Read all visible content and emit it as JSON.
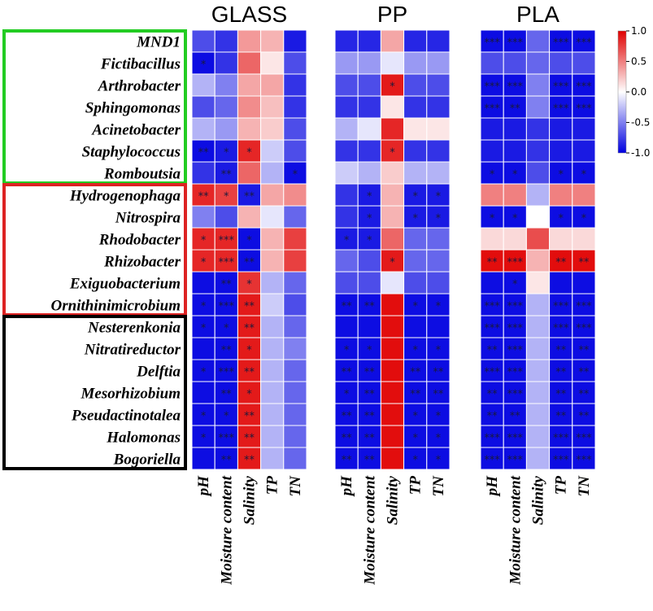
{
  "chart_data": {
    "type": "heatmap",
    "rows": [
      "MND1",
      "Fictibacillus",
      "Arthrobacter",
      "Sphingomonas",
      "Acinetobacter",
      "Staphylococcus",
      "Romboutsia",
      "Hydrogenophaga",
      "Nitrospira",
      "Rhodobacter",
      "Rhizobacter",
      "Exiguobacterium",
      "Ornithinimicrobium",
      "Nesterenkonia",
      "Nitratireductor",
      "Delftia",
      "Mesorhizobium",
      "Pseudactinotalea",
      "Halomonas",
      "Bogoriella"
    ],
    "columns": [
      "pH",
      "Moisture content",
      "Salinity",
      "TP",
      "TN"
    ],
    "groups": [
      {
        "name": "green",
        "color": "#22cc22",
        "from": 0,
        "to": 6
      },
      {
        "name": "red",
        "color": "#dd2222",
        "from": 7,
        "to": 12
      },
      {
        "name": "black",
        "color": "#000000",
        "from": 13,
        "to": 19
      }
    ],
    "colorbar": {
      "ticks": [
        "1.0",
        "0.5",
        "0.0",
        "-0.5",
        "-1.0"
      ],
      "range": [
        -1,
        1
      ],
      "low_color": "#0000e0",
      "mid_color": "#ffffff",
      "high_color": "#e00000"
    },
    "panels": [
      {
        "title": "GLASS",
        "values": [
          [
            -0.7,
            -0.8,
            0.4,
            0.3,
            -0.9
          ],
          [
            -0.95,
            -0.8,
            0.6,
            0.1,
            -0.7
          ],
          [
            -0.3,
            -0.5,
            0.35,
            0.35,
            -0.8
          ],
          [
            -0.7,
            -0.6,
            0.45,
            0.25,
            -0.8
          ],
          [
            -0.3,
            -0.4,
            0.3,
            0.2,
            -0.7
          ],
          [
            -0.95,
            -0.9,
            0.85,
            -0.2,
            -0.7
          ],
          [
            -0.8,
            -0.9,
            0.6,
            -0.3,
            -0.95
          ],
          [
            0.85,
            0.75,
            -0.9,
            0.35,
            0.45
          ],
          [
            -0.5,
            -0.7,
            0.3,
            -0.1,
            -0.6
          ],
          [
            0.85,
            0.85,
            -0.95,
            0.3,
            0.75
          ],
          [
            0.85,
            0.85,
            -0.95,
            0.3,
            0.75
          ],
          [
            -0.95,
            -0.95,
            0.8,
            -0.3,
            -0.6
          ],
          [
            -0.95,
            -0.95,
            0.9,
            -0.2,
            -0.7
          ],
          [
            -0.95,
            -0.95,
            0.9,
            -0.3,
            -0.6
          ],
          [
            -0.95,
            -0.95,
            0.9,
            -0.3,
            -0.5
          ],
          [
            -0.95,
            -0.95,
            0.9,
            -0.3,
            -0.6
          ],
          [
            -0.95,
            -0.95,
            0.9,
            -0.3,
            -0.6
          ],
          [
            -0.95,
            -0.95,
            0.9,
            -0.3,
            -0.6
          ],
          [
            -0.95,
            -0.95,
            0.9,
            -0.3,
            -0.6
          ],
          [
            -0.95,
            -0.95,
            0.9,
            -0.3,
            -0.6
          ]
        ],
        "stars": [
          [
            "",
            "",
            "",
            "",
            ""
          ],
          [
            "*",
            "",
            "",
            "",
            ""
          ],
          [
            "",
            "",
            "",
            "",
            ""
          ],
          [
            "",
            "",
            "",
            "",
            ""
          ],
          [
            "",
            "",
            "",
            "",
            ""
          ],
          [
            "**",
            "*",
            "*",
            "",
            ""
          ],
          [
            "",
            "**",
            "",
            "",
            "*"
          ],
          [
            "**",
            "*",
            "**",
            "",
            ""
          ],
          [
            "",
            "",
            "",
            "",
            ""
          ],
          [
            "*",
            "***",
            "*",
            "",
            ""
          ],
          [
            "*",
            "***",
            "**",
            "",
            ""
          ],
          [
            "",
            "**",
            "*",
            "",
            ""
          ],
          [
            "*",
            "***",
            "**",
            "",
            ""
          ],
          [
            "*",
            "*",
            "**",
            "",
            ""
          ],
          [
            "",
            "**",
            "*",
            "",
            ""
          ],
          [
            "*",
            "***",
            "**",
            "",
            ""
          ],
          [
            "",
            "**",
            "*",
            "",
            ""
          ],
          [
            "*",
            "*",
            "**",
            "",
            ""
          ],
          [
            "*",
            "***",
            "**",
            "",
            ""
          ],
          [
            "",
            "**",
            "**",
            "",
            ""
          ]
        ]
      },
      {
        "title": "PP",
        "values": [
          [
            -0.85,
            -0.85,
            0.35,
            -0.85,
            -0.85
          ],
          [
            -0.4,
            -0.4,
            -0.1,
            -0.4,
            -0.4
          ],
          [
            -0.7,
            -0.7,
            0.9,
            -0.7,
            -0.7
          ],
          [
            -0.8,
            -0.8,
            0.1,
            -0.8,
            -0.8
          ],
          [
            -0.3,
            -0.1,
            0.85,
            0.1,
            0.1
          ],
          [
            -0.8,
            -0.8,
            0.85,
            -0.8,
            -0.8
          ],
          [
            -0.2,
            -0.3,
            0.2,
            -0.3,
            -0.3
          ],
          [
            -0.8,
            -0.9,
            0.3,
            -0.9,
            -0.9
          ],
          [
            -0.8,
            -0.9,
            0.3,
            -0.9,
            -0.9
          ],
          [
            -0.9,
            -0.9,
            0.6,
            -0.6,
            -0.6
          ],
          [
            -0.6,
            -0.7,
            0.9,
            -0.6,
            -0.6
          ],
          [
            -0.7,
            -0.7,
            -0.1,
            -0.7,
            -0.7
          ],
          [
            -0.95,
            -0.95,
            0.95,
            -0.95,
            -0.95
          ],
          [
            -0.95,
            -0.95,
            0.95,
            -0.95,
            -0.95
          ],
          [
            -0.95,
            -0.95,
            0.95,
            -0.95,
            -0.95
          ],
          [
            -0.95,
            -0.95,
            0.95,
            -0.95,
            -0.95
          ],
          [
            -0.95,
            -0.95,
            0.95,
            -0.95,
            -0.95
          ],
          [
            -0.95,
            -0.95,
            0.95,
            -0.95,
            -0.95
          ],
          [
            -0.95,
            -0.95,
            0.95,
            -0.95,
            -0.95
          ],
          [
            -0.95,
            -0.95,
            0.95,
            -0.95,
            -0.95
          ]
        ],
        "stars": [
          [
            "",
            "",
            "",
            "",
            ""
          ],
          [
            "",
            "",
            "",
            "",
            ""
          ],
          [
            "",
            "",
            "*",
            "",
            ""
          ],
          [
            "",
            "",
            "",
            "",
            ""
          ],
          [
            "",
            "",
            "",
            "",
            ""
          ],
          [
            "",
            "",
            "*",
            "",
            ""
          ],
          [
            "",
            "",
            "",
            "",
            ""
          ],
          [
            "",
            "*",
            "",
            "*",
            "*"
          ],
          [
            "",
            "*",
            "",
            "*",
            "*"
          ],
          [
            "*",
            "*",
            "",
            "",
            ""
          ],
          [
            "",
            "",
            "*",
            "",
            ""
          ],
          [
            "",
            "",
            "",
            "",
            ""
          ],
          [
            "**",
            "**",
            "",
            "*",
            "*"
          ],
          [
            "",
            "",
            "",
            "",
            ""
          ],
          [
            "*",
            "*",
            "",
            "*",
            "*"
          ],
          [
            "**",
            "**",
            "",
            "**",
            "**"
          ],
          [
            "*",
            "**",
            "",
            "**",
            "**"
          ],
          [
            "**",
            "**",
            "",
            "*",
            "*"
          ],
          [
            "**",
            "**",
            "",
            "*",
            "*"
          ],
          [
            "**",
            "**",
            "",
            "*",
            "*"
          ]
        ]
      },
      {
        "title": "PLA",
        "values": [
          [
            -0.95,
            -0.95,
            -0.6,
            -0.95,
            -0.95
          ],
          [
            -0.7,
            -0.7,
            -0.6,
            -0.7,
            -0.7
          ],
          [
            -0.95,
            -0.95,
            -0.5,
            -0.95,
            -0.95
          ],
          [
            -0.95,
            -0.95,
            -0.5,
            -0.95,
            -0.95
          ],
          [
            -0.9,
            -0.9,
            -0.8,
            -0.9,
            -0.9
          ],
          [
            -0.9,
            -0.9,
            -0.8,
            -0.9,
            -0.9
          ],
          [
            -0.95,
            -0.95,
            -0.7,
            -0.95,
            -0.95
          ],
          [
            0.5,
            0.5,
            -0.3,
            0.5,
            0.5
          ],
          [
            -0.95,
            -0.95,
            0.0,
            -0.95,
            -0.95
          ],
          [
            0.15,
            0.15,
            0.7,
            0.15,
            0.15
          ],
          [
            0.95,
            0.95,
            0.3,
            0.95,
            0.95
          ],
          [
            -0.95,
            -0.95,
            0.1,
            -0.95,
            -0.95
          ],
          [
            -0.95,
            -0.95,
            -0.3,
            -0.95,
            -0.95
          ],
          [
            -0.95,
            -0.95,
            -0.3,
            -0.95,
            -0.95
          ],
          [
            -0.95,
            -0.95,
            -0.3,
            -0.95,
            -0.95
          ],
          [
            -0.95,
            -0.95,
            -0.3,
            -0.95,
            -0.95
          ],
          [
            -0.95,
            -0.95,
            -0.3,
            -0.95,
            -0.95
          ],
          [
            -0.95,
            -0.95,
            -0.3,
            -0.95,
            -0.95
          ],
          [
            -0.95,
            -0.95,
            -0.3,
            -0.95,
            -0.95
          ],
          [
            -0.95,
            -0.95,
            -0.3,
            -0.95,
            -0.95
          ]
        ],
        "stars": [
          [
            "***",
            "***",
            "",
            "***",
            "***"
          ],
          [
            "",
            "",
            "",
            "",
            ""
          ],
          [
            "***",
            "***",
            "",
            "***",
            "***"
          ],
          [
            "***",
            "**",
            "",
            "***",
            "***"
          ],
          [
            "",
            "",
            "",
            "",
            ""
          ],
          [
            "",
            "",
            "",
            "",
            ""
          ],
          [
            "*",
            "*",
            "",
            "*",
            "*"
          ],
          [
            "",
            "",
            "",
            "",
            ""
          ],
          [
            "*",
            "*",
            "",
            "*",
            "*"
          ],
          [
            "",
            "",
            "",
            "",
            ""
          ],
          [
            "**",
            "***",
            "",
            "**",
            "**"
          ],
          [
            "",
            "*",
            "",
            "",
            ""
          ],
          [
            "***",
            "***",
            "",
            "***",
            "***"
          ],
          [
            "***",
            "***",
            "",
            "***",
            "***"
          ],
          [
            "**",
            "***",
            "",
            "**",
            "**"
          ],
          [
            "***",
            "***",
            "",
            "**",
            "**"
          ],
          [
            "**",
            "***",
            "",
            "**",
            "**"
          ],
          [
            "**",
            "**",
            "",
            "**",
            "**"
          ],
          [
            "***",
            "***",
            "",
            "***",
            "***"
          ],
          [
            "***",
            "***",
            "",
            "***",
            "***"
          ]
        ]
      }
    ]
  }
}
